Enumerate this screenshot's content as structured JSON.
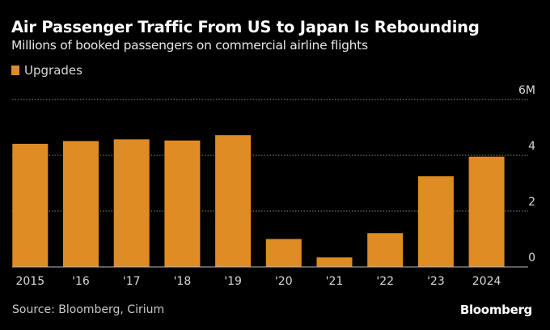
{
  "chart_data": {
    "type": "bar",
    "title": "Air Passenger Traffic From US to Japan Is Rebounding",
    "subtitle": "Millions of booked passengers on commercial airline flights",
    "xlabel": "",
    "ylabel": "",
    "categories": [
      "2015",
      "'16",
      "'17",
      "'18",
      "'19",
      "'20",
      "'21",
      "'22",
      "'23",
      "2024"
    ],
    "series": [
      {
        "name": "Upgrades",
        "color": "#e08c24",
        "values": [
          4.41,
          4.51,
          4.57,
          4.53,
          4.72,
          1.0,
          0.34,
          1.21,
          3.25,
          3.95
        ]
      }
    ],
    "ylim": [
      0,
      6
    ],
    "yticks": [
      {
        "value": 6,
        "label": "6M"
      },
      {
        "value": 4,
        "label": "4"
      },
      {
        "value": 2,
        "label": "2"
      },
      {
        "value": 0,
        "label": "0"
      }
    ],
    "grid": true,
    "legend_position": "top-left",
    "source": "Source: Bloomberg, Cirium",
    "brand": "Bloomberg"
  },
  "colors": {
    "background": "#000000",
    "bar": "#e08c24",
    "grid": "#8a8a8a",
    "baseline": "#bdbdbd",
    "tick_text": "#d8d8d8"
  }
}
